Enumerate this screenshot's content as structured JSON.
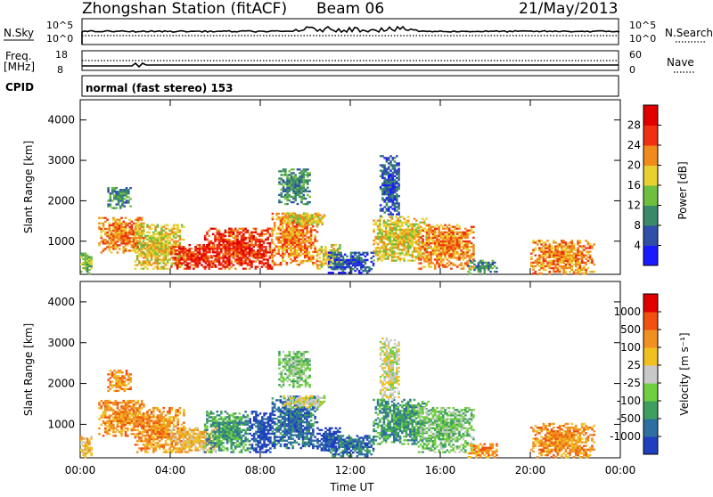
{
  "header": {
    "station_title": "Zhongshan Station (fitACF)",
    "beam_label": "Beam 06",
    "date": "21/May/2013"
  },
  "strip_sky": {
    "left_label": "N.Sky",
    "left_ticks": [
      "10^5",
      "10^0"
    ],
    "right_ticks": [
      "10^5",
      "10^0"
    ],
    "right_label": "N.Search"
  },
  "strip_freq": {
    "left_label": "Freq.",
    "left_unit": "[MHz]",
    "left_ticks": [
      "18",
      "8"
    ],
    "right_ticks": [
      "60",
      "0"
    ],
    "right_label": "Nave"
  },
  "cpid": {
    "label": "CPID",
    "text": "normal (fast stereo) 153"
  },
  "chart_data": [
    {
      "type": "heatmap",
      "name": "power",
      "ylabel": "Slant Range [km]",
      "xlabel": "",
      "y_ticks": [
        1000,
        2000,
        3000,
        4000
      ],
      "ylim": [
        180,
        4500
      ],
      "x_ticks": [
        "00:00",
        "04:00",
        "08:00",
        "12:00",
        "16:00",
        "20:00",
        "00:00"
      ],
      "colorbar": {
        "label": "Power [dB]",
        "ticks": [
          "4",
          "8",
          "12",
          "16",
          "20",
          "24",
          "28"
        ],
        "colors": [
          "#1a1aff",
          "#2f4fa8",
          "#3a8a6a",
          "#6fbf3f",
          "#e8d030",
          "#f08a1a",
          "#f03010",
          "#e00000"
        ]
      },
      "regions": [
        {
          "t": [
            0.0,
            0.5
          ],
          "r": [
            180,
            700
          ],
          "level": 3
        },
        {
          "t": [
            0.8,
            2.8
          ],
          "r": [
            700,
            1600
          ],
          "level": 5
        },
        {
          "t": [
            1.2,
            2.2
          ],
          "r": [
            1800,
            2300
          ],
          "level": 2
        },
        {
          "t": [
            2.4,
            4.6
          ],
          "r": [
            300,
            1400
          ],
          "level": 4
        },
        {
          "t": [
            4.0,
            6.0
          ],
          "r": [
            300,
            900
          ],
          "level": 6
        },
        {
          "t": [
            5.5,
            8.5
          ],
          "r": [
            300,
            1300
          ],
          "level": 6
        },
        {
          "t": [
            8.5,
            10.5
          ],
          "r": [
            400,
            1700
          ],
          "level": 5
        },
        {
          "t": [
            8.8,
            10.2
          ],
          "r": [
            1900,
            2800
          ],
          "level": 2
        },
        {
          "t": [
            9.0,
            10.8
          ],
          "r": [
            1400,
            1700
          ],
          "level": 4
        },
        {
          "t": [
            10.5,
            11.5
          ],
          "r": [
            300,
            900
          ],
          "level": 4
        },
        {
          "t": [
            11.0,
            13.0
          ],
          "r": [
            200,
            700
          ],
          "level": 1
        },
        {
          "t": [
            13.0,
            15.5
          ],
          "r": [
            500,
            1600
          ],
          "level": 4
        },
        {
          "t": [
            13.3,
            14.2
          ],
          "r": [
            1600,
            3100
          ],
          "level": 1
        },
        {
          "t": [
            15.0,
            17.5
          ],
          "r": [
            300,
            1400
          ],
          "level": 5
        },
        {
          "t": [
            17.2,
            18.5
          ],
          "r": [
            180,
            500
          ],
          "level": 2
        },
        {
          "t": [
            20.0,
            22.8
          ],
          "r": [
            180,
            1000
          ],
          "level": 5
        }
      ]
    },
    {
      "type": "heatmap",
      "name": "velocity",
      "ylabel": "Slant Range [km]",
      "xlabel": "Time UT",
      "y_ticks": [
        1000,
        2000,
        3000,
        4000
      ],
      "ylim": [
        180,
        4500
      ],
      "x_ticks": [
        "00:00",
        "04:00",
        "08:00",
        "12:00",
        "16:00",
        "20:00",
        "00:00"
      ],
      "colorbar": {
        "label": "Velocity [m s⁻¹]",
        "ticks": [
          "1000",
          "500",
          "100",
          "25",
          "-25",
          "-100",
          "-500",
          "-1000"
        ],
        "colors": [
          "#1f3fbf",
          "#2f6f9f",
          "#3f9f5f",
          "#6fcf3f",
          "#c8c8c8",
          "#f0c020",
          "#f09020",
          "#f05010",
          "#e00000"
        ]
      },
      "regions": [
        {
          "t": [
            0.0,
            0.5
          ],
          "r": [
            180,
            700
          ],
          "level": 5
        },
        {
          "t": [
            0.8,
            2.8
          ],
          "r": [
            700,
            1600
          ],
          "level": 6
        },
        {
          "t": [
            1.2,
            2.2
          ],
          "r": [
            1800,
            2300
          ],
          "level": 6
        },
        {
          "t": [
            2.4,
            4.6
          ],
          "r": [
            300,
            1400
          ],
          "level": 6
        },
        {
          "t": [
            4.0,
            6.0
          ],
          "r": [
            300,
            900
          ],
          "level": 5
        },
        {
          "t": [
            5.5,
            7.5
          ],
          "r": [
            300,
            1300
          ],
          "level": 2
        },
        {
          "t": [
            7.5,
            8.5
          ],
          "r": [
            300,
            1300
          ],
          "level": 0
        },
        {
          "t": [
            8.5,
            10.5
          ],
          "r": [
            400,
            1700
          ],
          "level": 1
        },
        {
          "t": [
            8.8,
            10.2
          ],
          "r": [
            1900,
            2800
          ],
          "level": 3
        },
        {
          "t": [
            9.0,
            10.8
          ],
          "r": [
            1400,
            1700
          ],
          "level": 4
        },
        {
          "t": [
            10.5,
            11.5
          ],
          "r": [
            300,
            900
          ],
          "level": 0
        },
        {
          "t": [
            11.0,
            13.0
          ],
          "r": [
            200,
            700
          ],
          "level": 1
        },
        {
          "t": [
            13.0,
            15.5
          ],
          "r": [
            500,
            1600
          ],
          "level": 2
        },
        {
          "t": [
            13.3,
            14.2
          ],
          "r": [
            1600,
            3100
          ],
          "level": 4
        },
        {
          "t": [
            15.0,
            17.5
          ],
          "r": [
            300,
            1400
          ],
          "level": 3
        },
        {
          "t": [
            17.2,
            18.5
          ],
          "r": [
            180,
            500
          ],
          "level": 6
        },
        {
          "t": [
            20.0,
            22.8
          ],
          "r": [
            180,
            1000
          ],
          "level": 6
        }
      ]
    }
  ]
}
